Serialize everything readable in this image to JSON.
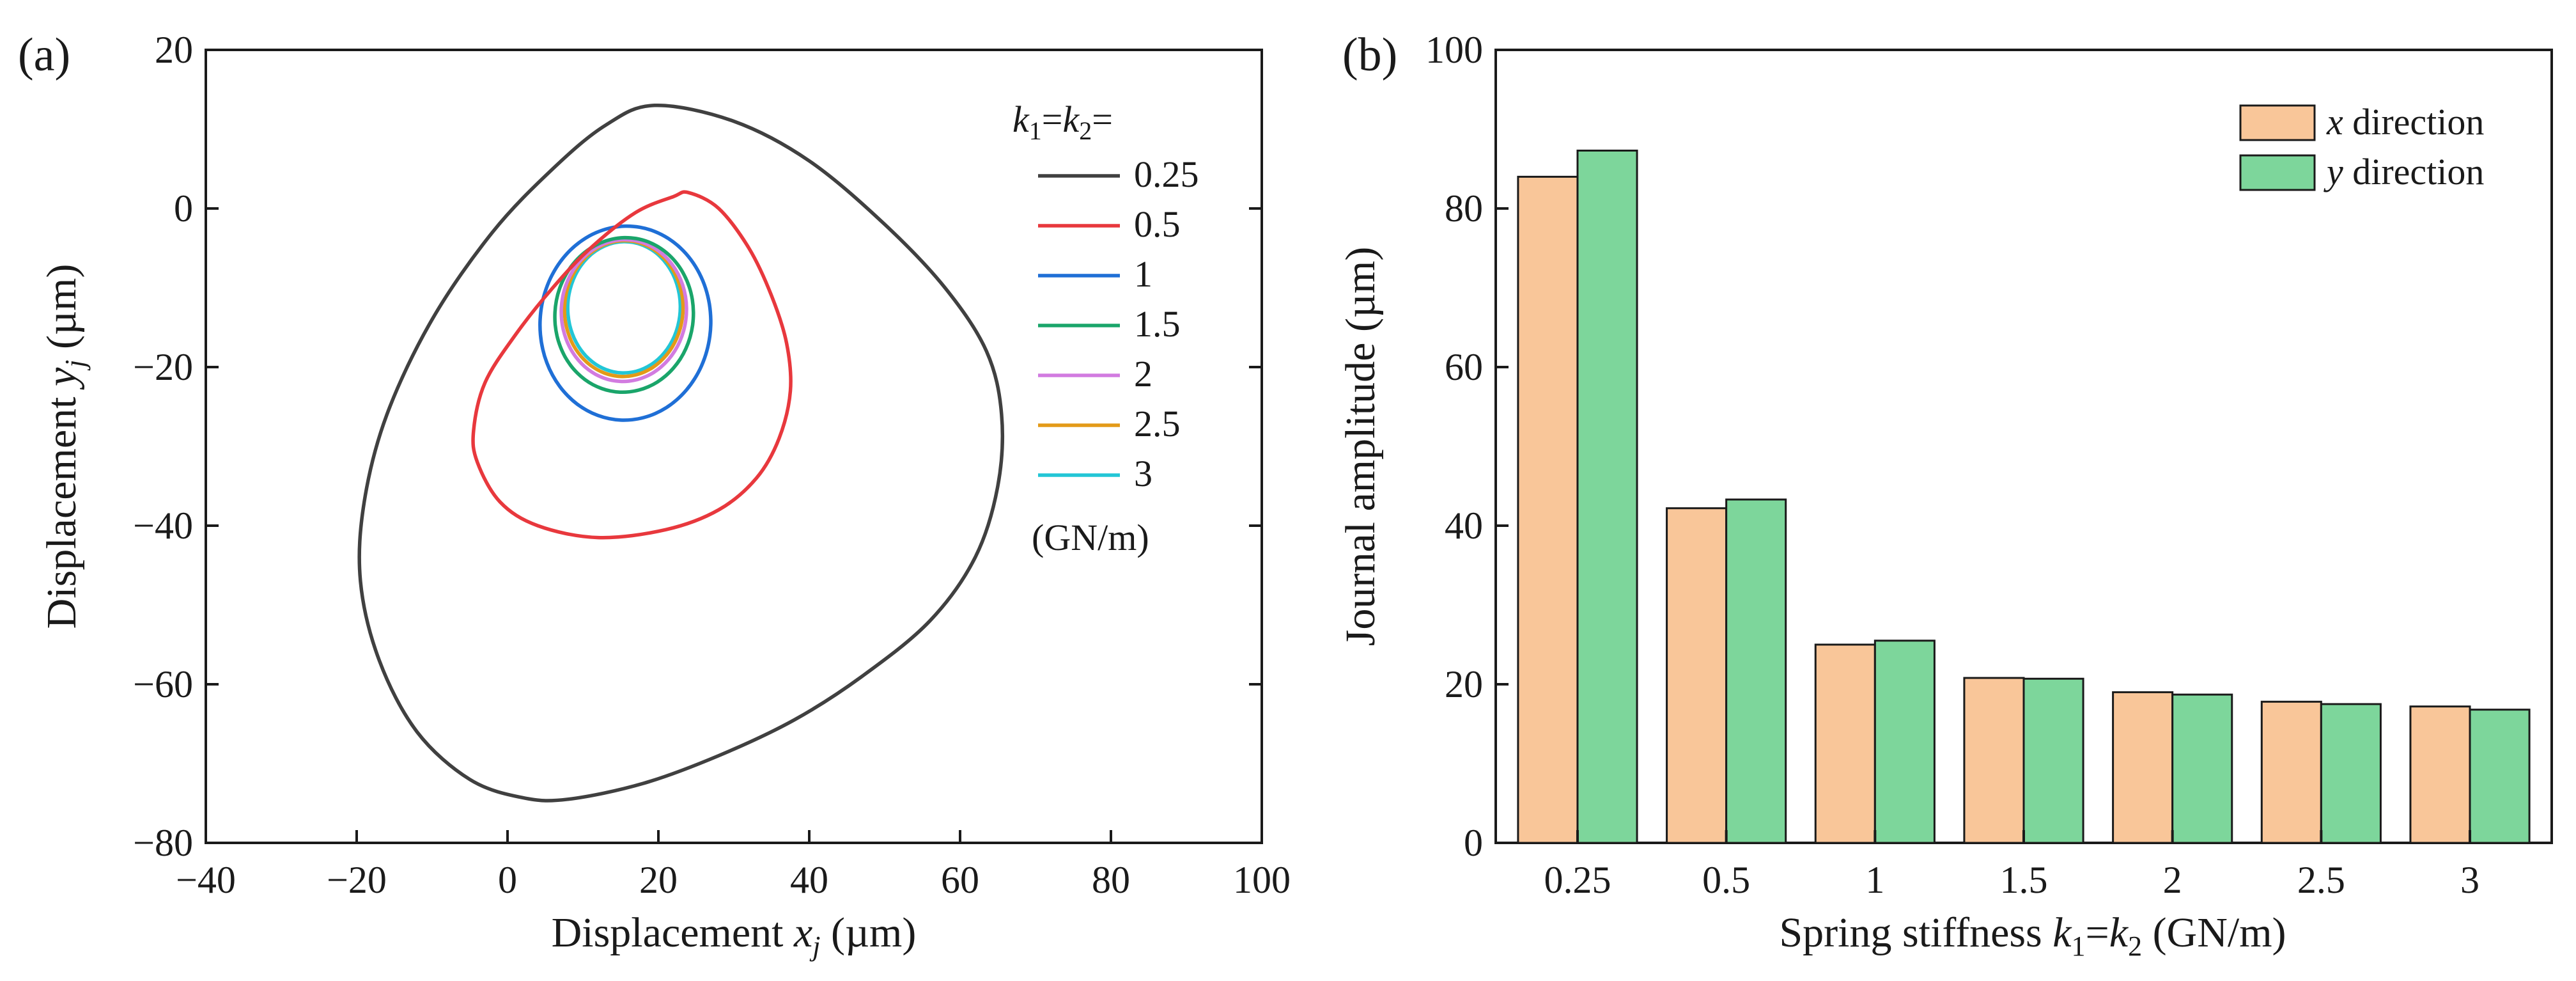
{
  "chart_data": [
    {
      "panel": "(a)",
      "type": "line",
      "xlabel_main": "Displacement ",
      "xlabel_var": "x",
      "xlabel_sub": "j",
      "xlabel_unit": " (µm)",
      "ylabel_main": "Displacement ",
      "ylabel_var": "y",
      "ylabel_sub": "j",
      "ylabel_unit": " (µm)",
      "xlim": [
        -40,
        100
      ],
      "ylim": [
        -80,
        20
      ],
      "xticks": [
        -40,
        -20,
        0,
        20,
        40,
        60,
        80,
        100
      ],
      "yticks": [
        -80,
        -60,
        -40,
        -20,
        0,
        20
      ],
      "legend_title": "k1=k2=",
      "legend_unit": "(GN/m)",
      "legend_position": "top-right",
      "series": [
        {
          "name": "0.25",
          "color": "#404040",
          "cx": 22,
          "cy": -31,
          "top": 13,
          "bottom": -74.5,
          "left": -19.5,
          "right": 65.5,
          "x": [
            19.5,
            30,
            40,
            50,
            58,
            63.5,
            65.5,
            65,
            62,
            56,
            47,
            38,
            28,
            18,
            8,
            2,
            -5,
            -12,
            -17,
            -19.5,
            -19,
            -16,
            -10,
            -2,
            6,
            13,
            19.5
          ],
          "y": [
            13,
            11,
            6,
            -2,
            -10,
            -18,
            -26,
            -35,
            -44,
            -52,
            -59,
            -64.5,
            -69,
            -72.5,
            -74.5,
            -74.3,
            -72,
            -66,
            -57,
            -47,
            -37,
            -26,
            -14,
            -3,
            5,
            10.5,
            13
          ]
        },
        {
          "name": "0.5",
          "color": "#e8383d",
          "cx": 16.5,
          "cy": -19.8,
          "top": 2,
          "bottom": -41.5,
          "left": -4.5,
          "right": 37.5,
          "x": [
            24,
            28,
            32,
            35,
            37,
            37.5,
            36,
            33,
            28,
            21,
            12,
            4,
            -1,
            -4,
            -4.5,
            -3,
            1,
            6,
            11,
            17,
            22,
            24
          ],
          "y": [
            2,
            0,
            -5,
            -11,
            -17,
            -23,
            -29,
            -34,
            -38,
            -40.5,
            -41.5,
            -40,
            -37,
            -32,
            -28,
            -22,
            -16,
            -10,
            -5,
            -0.5,
            1.5,
            2
          ]
        },
        {
          "name": "1",
          "color": "#1f6fd6",
          "cx": 15.2,
          "cy": -15.8,
          "top": -3,
          "bottom": -29,
          "left": 2.5,
          "right": 28
        },
        {
          "name": "1.5",
          "color": "#1aa56a",
          "cx": 15.2,
          "cy": -14.5,
          "top": -4.3,
          "bottom": -25,
          "left": 4.8,
          "right": 25.5
        },
        {
          "name": "2",
          "color": "#d27be0",
          "cx": 15.4,
          "cy": -14,
          "top": -4.5,
          "bottom": -23.5,
          "left": 5.8,
          "right": 24.5
        },
        {
          "name": "2.5",
          "color": "#e39a18",
          "cx": 15.5,
          "cy": -13.7,
          "top": -4.6,
          "bottom": -22.8,
          "left": 6.3,
          "right": 24
        },
        {
          "name": "3",
          "color": "#22c6d6",
          "cx": 15.6,
          "cy": -13.5,
          "top": -4.7,
          "bottom": -22.3,
          "left": 6.8,
          "right": 23.6
        }
      ]
    },
    {
      "panel": "(b)",
      "type": "bar",
      "xlabel_main": "Spring stiffness ",
      "xlabel_unit": " (GN/m)",
      "ylabel": "Journal amplitude (µm)",
      "ylim": [
        0,
        100
      ],
      "yticks": [
        0,
        20,
        40,
        60,
        80,
        100
      ],
      "categories": [
        "0.25",
        "0.5",
        "1",
        "1.5",
        "2",
        "2.5",
        "3"
      ],
      "legend_position": "top-right",
      "series": [
        {
          "name": "x direction",
          "var": "x",
          "label": " direction",
          "color": "#f9c699",
          "values": [
            84,
            42.2,
            25,
            20.8,
            19,
            17.8,
            17.2
          ]
        },
        {
          "name": "y direction",
          "var": "y",
          "label": " direction",
          "color": "#7dd69b",
          "values": [
            87.3,
            43.3,
            25.5,
            20.7,
            18.7,
            17.5,
            16.8
          ]
        }
      ]
    }
  ]
}
